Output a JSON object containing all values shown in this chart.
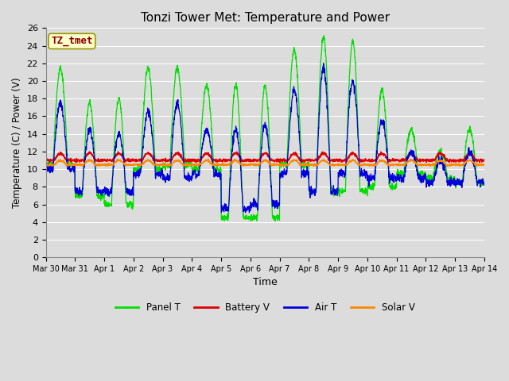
{
  "title": "Tonzi Tower Met: Temperature and Power",
  "xlabel": "Time",
  "ylabel": "Temperature (C) / Power (V)",
  "ylim": [
    0,
    26
  ],
  "yticks": [
    0,
    2,
    4,
    6,
    8,
    10,
    12,
    14,
    16,
    18,
    20,
    22,
    24,
    26
  ],
  "annotation_text": "TZ_tmet",
  "annotation_color": "#8B0000",
  "annotation_bg": "#FFFFCC",
  "annotation_border": "#999900",
  "fig_bg": "#DCDCDC",
  "plot_bg": "#DCDCDC",
  "grid_color": "#FFFFFF",
  "colors": {
    "Panel T": "#00DD00",
    "Battery V": "#DD0000",
    "Air T": "#0000DD",
    "Solar V": "#FF8800"
  },
  "n_days": 15,
  "x_tick_labels": [
    "Mar 30",
    "Mar 31",
    "Apr 1",
    "Apr 2",
    "Apr 3",
    "Apr 4",
    "Apr 5",
    "Apr 6",
    "Apr 7",
    "Apr 8",
    "Apr 9",
    "Apr 10",
    "Apr 11",
    "Apr 12",
    "Apr 13",
    "Apr 14"
  ],
  "panel_peaks": [
    21.5,
    17.5,
    18.0,
    21.5,
    21.5,
    19.5,
    19.5,
    19.5,
    23.5,
    25.0,
    24.5,
    19.0,
    14.5,
    12.0,
    14.5
  ],
  "panel_troughs": [
    10.5,
    7.0,
    6.0,
    10.0,
    10.5,
    10.0,
    4.5,
    4.5,
    10.5,
    7.5,
    7.5,
    8.0,
    9.5,
    9.0,
    8.5
  ],
  "air_peaks": [
    17.5,
    14.5,
    14.0,
    16.5,
    17.5,
    14.5,
    14.5,
    15.0,
    19.0,
    21.5,
    20.0,
    15.5,
    12.0,
    11.0,
    12.0
  ],
  "air_troughs": [
    10.0,
    7.5,
    7.5,
    9.5,
    9.0,
    9.5,
    5.5,
    6.0,
    9.5,
    7.5,
    9.5,
    9.0,
    9.0,
    8.5,
    8.5
  ],
  "battery_base": 11.0,
  "battery_amp": 0.8,
  "solar_base": 10.5,
  "solar_amp": 0.5
}
